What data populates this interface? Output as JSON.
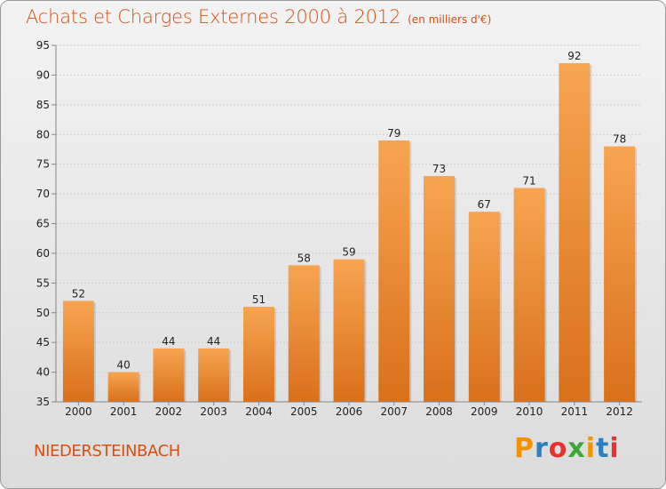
{
  "header": {
    "title": "Achats et Charges Externes 2000 à 2012",
    "subtitle": "(en milliers d'€)"
  },
  "commune": "NIEDERSTEINBACH",
  "logo": {
    "text": "Proxiti",
    "colors": [
      "#f29400",
      "#2a80c2",
      "#e8322c",
      "#3aa935",
      "#f29400",
      "#2a80c2",
      "#e8322c"
    ]
  },
  "chart_data": {
    "type": "bar",
    "title": "Achats et Charges Externes 2000 à 2012",
    "subtitle": "(en milliers d'€)",
    "categories": [
      "2000",
      "2001",
      "2002",
      "2003",
      "2004",
      "2005",
      "2006",
      "2007",
      "2008",
      "2009",
      "2010",
      "2011",
      "2012"
    ],
    "values": [
      52,
      40,
      44,
      44,
      51,
      58,
      59,
      79,
      73,
      67,
      71,
      92,
      78
    ],
    "ylim": [
      35,
      95
    ],
    "yticks": [
      35,
      40,
      45,
      50,
      55,
      60,
      65,
      70,
      75,
      80,
      85,
      90,
      95
    ],
    "grid": true,
    "bar_color": "#f0852e"
  }
}
